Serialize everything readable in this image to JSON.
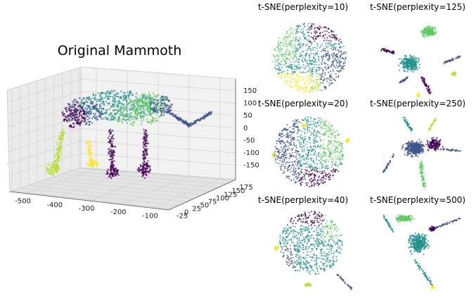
{
  "colors": {
    "palette": [
      "#440154",
      "#3b528b",
      "#21918c",
      "#5ec962",
      "#b5de2b",
      "#fde725"
    ],
    "pane": "#f2f2f2",
    "grid": "#d0d0d0"
  },
  "chart_data": [
    {
      "type": "scatter",
      "title": "Original Mammoth",
      "projection": "3d",
      "xlabel": "",
      "ylabel": "",
      "zlabel": "",
      "x_ticks": [
        "-500",
        "-400",
        "-300",
        "-200",
        "-100"
      ],
      "y_ticks": [
        "-25",
        "0",
        "25",
        "50",
        "75",
        "100",
        "125",
        "150",
        "175"
      ],
      "z_ticks": [
        "150",
        "100",
        "50",
        "0",
        "-50",
        "-100",
        "-150"
      ],
      "xlim": [
        -560,
        -50
      ],
      "ylim": [
        -30,
        180
      ],
      "zlim": [
        -190,
        180
      ],
      "grid": true,
      "colormap": "viridis",
      "note_points": "6 color clusters drawn as small translucent dots"
    },
    {
      "type": "scatter",
      "title": "t-SNE(perplexity=10)",
      "colormap": "viridis",
      "axes": "off"
    },
    {
      "type": "scatter",
      "title": "t-SNE(perplexity=125)",
      "colormap": "viridis",
      "axes": "off"
    },
    {
      "type": "scatter",
      "title": "t-SNE(perplexity=20)",
      "colormap": "viridis",
      "axes": "off"
    },
    {
      "type": "scatter",
      "title": "t-SNE(perplexity=250)",
      "colormap": "viridis",
      "axes": "off"
    },
    {
      "type": "scatter",
      "title": "t-SNE(perplexity=40)",
      "colormap": "viridis",
      "axes": "off"
    },
    {
      "type": "scatter",
      "title": "t-SNE(perplexity=500)",
      "colormap": "viridis",
      "axes": "off"
    }
  ]
}
